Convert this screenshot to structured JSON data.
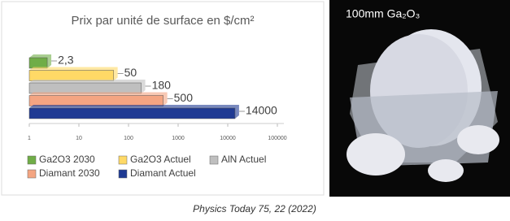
{
  "chart_data": {
    "type": "bar",
    "orientation": "horizontal",
    "title": "Prix par unité de surface en $/cm²",
    "log_scale": true,
    "xlim": [
      1,
      100000
    ],
    "xticks": [
      1,
      10,
      100,
      1000,
      10000,
      100000
    ],
    "series": [
      {
        "name": "Ga2O3 2030",
        "color": "#70ad47",
        "values": [
          2.3
        ],
        "value_labels": [
          "2,3"
        ]
      },
      {
        "name": "Ga2O3 Actuel",
        "color": "#ffd966",
        "values": [
          50
        ]
      },
      {
        "name": "AlN Actuel",
        "color": "#bfbfbf",
        "values": [
          180
        ]
      },
      {
        "name": "Diamant 2030",
        "color": "#f4a582",
        "values": [
          500
        ]
      },
      {
        "name": "Diamant Actuel",
        "color": "#1f3a93",
        "values": [
          14000
        ]
      }
    ]
  },
  "photo": {
    "label": "100mm Ga₂O₃"
  },
  "caption": "Physics Today 75, 22 (2022)"
}
